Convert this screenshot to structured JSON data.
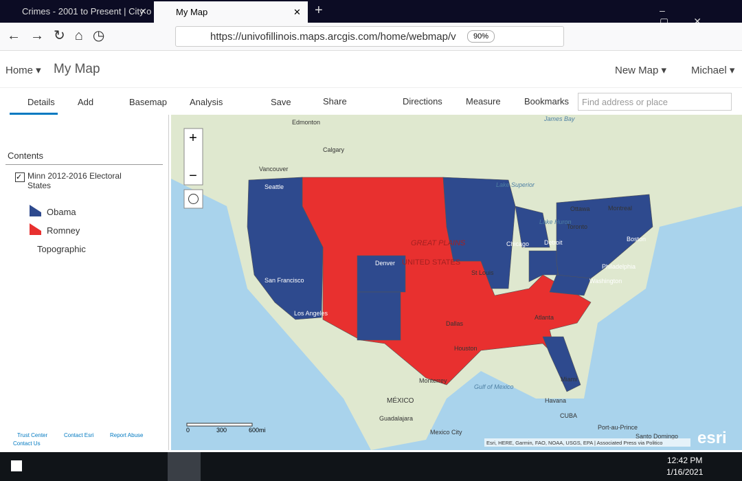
{
  "browser": {
    "tabs": [
      "Crimes - 2001 to Present | City o",
      "My Map"
    ],
    "url": "https://univofillinois.maps.arcgis.com/home/webmap/v",
    "zoom": "90%"
  },
  "app": {
    "home": "Home",
    "title": "My Map",
    "new_map": "New Map",
    "user": "Michael"
  },
  "toolbar": {
    "left": [
      "Details",
      "Add",
      "Basemap",
      "Analysis"
    ],
    "right": [
      "Save",
      "Share",
      "Directions",
      "Measure",
      "Bookmarks"
    ],
    "search": "Find address or place"
  },
  "sidebar": {
    "heading": "Contents",
    "layer": "Minn 2012-2016 Electoral States",
    "legend": [
      "Obama",
      "Romney"
    ],
    "basemap": "Topographic",
    "footer": [
      "Trust Center",
      "Contact Esri",
      "Report Abuse",
      "Contact Us"
    ]
  },
  "map": {
    "labels": [
      "Edmonton",
      "Calgary",
      "Vancouver",
      "Seattle",
      "Lake Superior",
      "Ottawa",
      "Montreal",
      "Lake Huron",
      "Toronto",
      "Boston",
      "Detroit",
      "Chicago",
      "GREAT PLAINS",
      "UNITED STATES",
      "Denver",
      "St Louis",
      "Philadelphia",
      "Washington",
      "San Francisco",
      "Los Angeles",
      "Atlanta",
      "Dallas",
      "Houston",
      "Monterrey",
      "Gulf of Mexico",
      "Miami",
      "Havana",
      "MÉXICO",
      "CUBA",
      "Guadalajara",
      "Mexico City",
      "Port-au-Prince",
      "Santo Domingo",
      "James Bay"
    ],
    "scale": [
      "0",
      "300",
      "600mi"
    ],
    "attribution": "Esri, HERE, Garmin, FAO, NOAA, USGS, EPA | Associated Press via Politico",
    "logo": "esri"
  },
  "taskbar": {
    "time": "12:42 PM",
    "date": "1/16/2021"
  }
}
